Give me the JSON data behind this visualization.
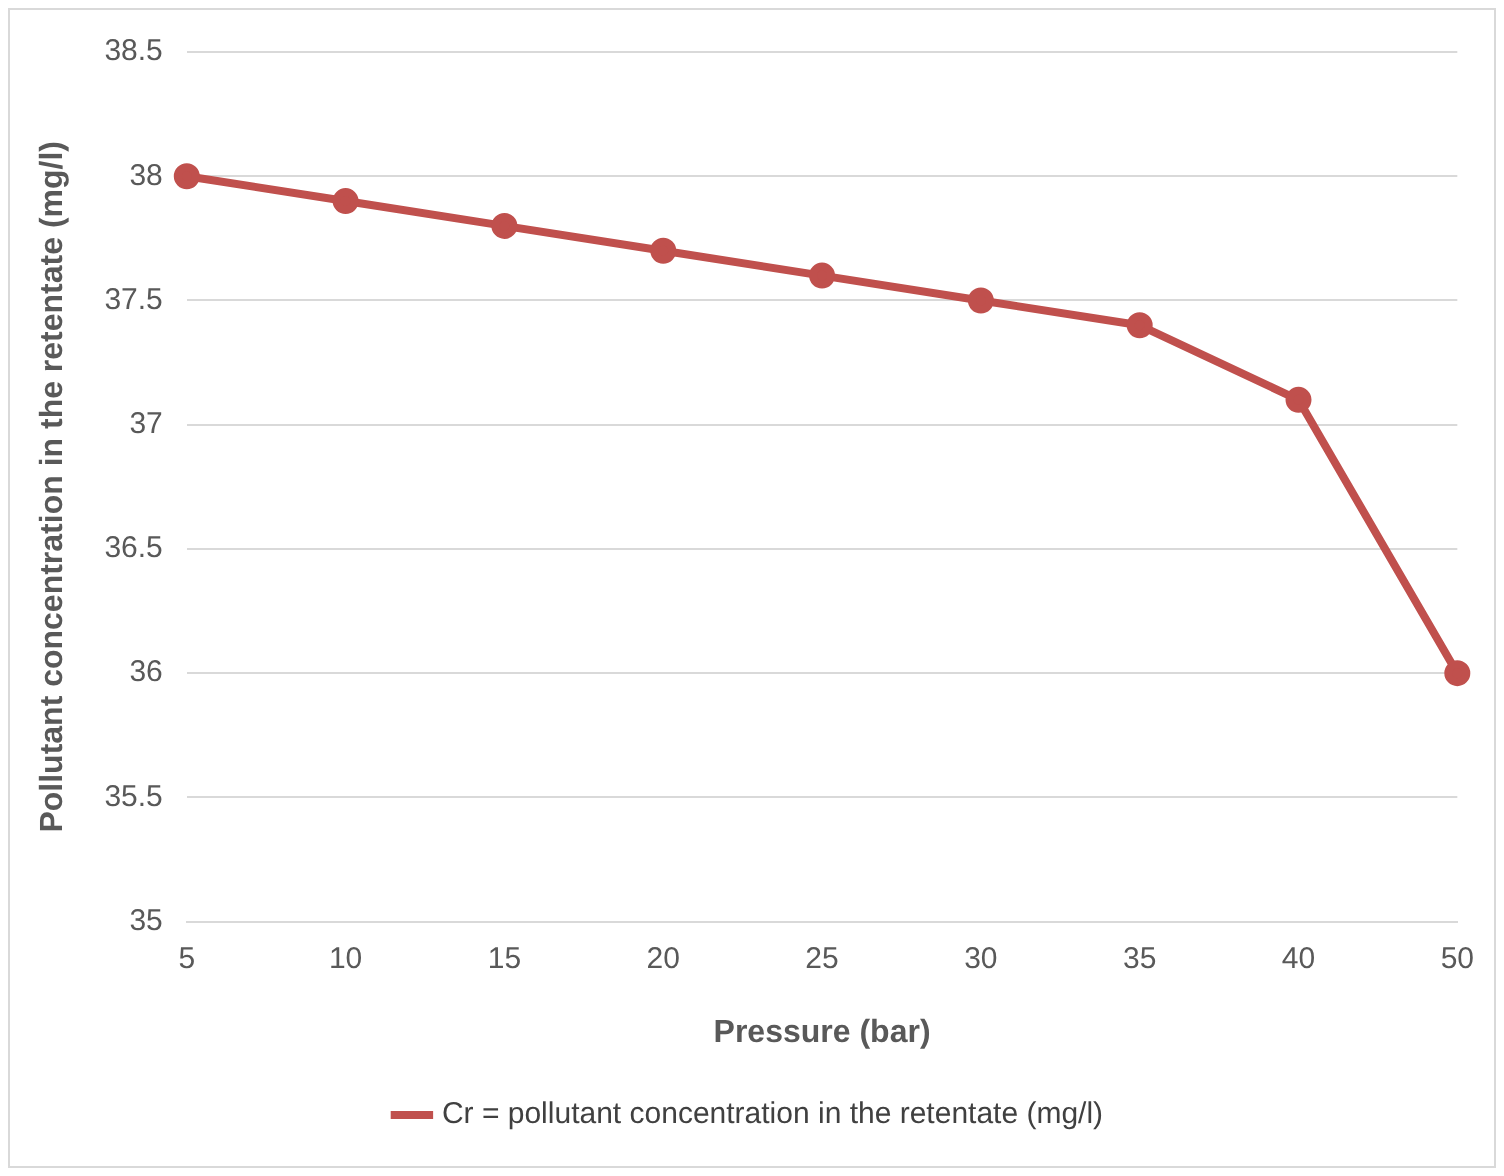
{
  "chart_data": {
    "type": "line",
    "xlabel": "Pressure (bar)",
    "ylabel": "Pollutant concentration in the retentate (mg/l)",
    "categories": [
      "5",
      "10",
      "15",
      "20",
      "25",
      "30",
      "35",
      "40",
      "50"
    ],
    "series": [
      {
        "name": "Cr = pollutant concentration in the retentate (mg/l)",
        "color": "#c0504d",
        "values": [
          38,
          37.9,
          37.8,
          37.7,
          37.6,
          37.5,
          37.4,
          37.1,
          36
        ]
      }
    ],
    "ylim": [
      35,
      38.5
    ],
    "yticks": [
      35,
      35.5,
      36,
      36.5,
      37,
      37.5,
      38,
      38.5
    ],
    "grid": "y",
    "legend": "bottom",
    "marker": "circle",
    "line_style": "solid"
  }
}
